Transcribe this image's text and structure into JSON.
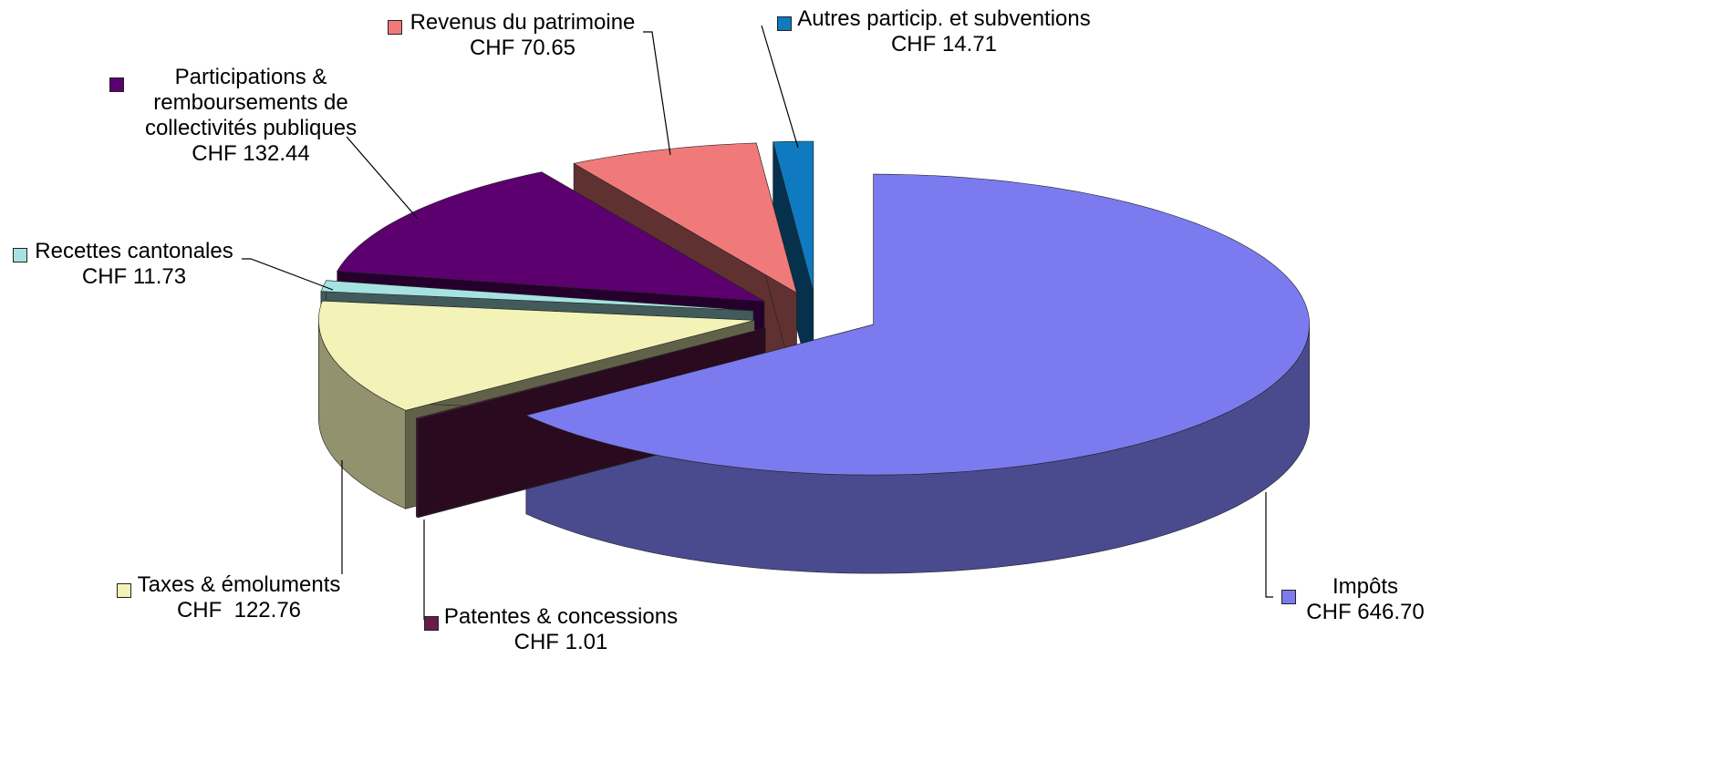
{
  "chart_data": {
    "type": "pie",
    "categories": [
      "Impôts",
      "Patentes & concessions",
      "Taxes & émoluments",
      "Recettes cantonales",
      "Participations & remboursements de collectivités publiques",
      "Revenus du patrimoine",
      "Autres particip. et subventions"
    ],
    "values": [
      646.7,
      1.01,
      122.76,
      11.73,
      132.44,
      70.65,
      14.71
    ],
    "value_labels": [
      "CHF 646.70",
      "CHF 1.01",
      "CHF  122.76",
      "CHF 11.73",
      "CHF 132.44",
      "CHF 70.65",
      "CHF 14.71"
    ],
    "colors": [
      "#7b7bef",
      "#6a1a4a",
      "#f3f3b8",
      "#a6e2e2",
      "#5c0070",
      "#f07a7a",
      "#0f7abf"
    ]
  }
}
